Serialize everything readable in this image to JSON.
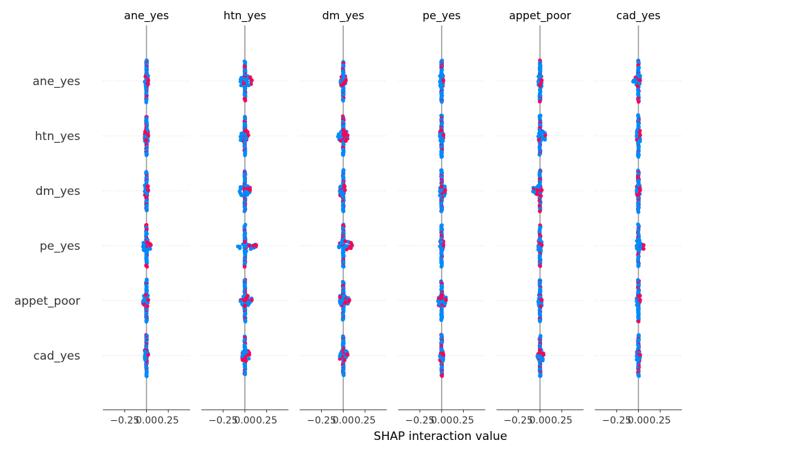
{
  "chart_data": {
    "type": "scatter",
    "title": "",
    "xlabel": "SHAP interaction value",
    "ylabel": "",
    "features": [
      "ane_yes",
      "htn_yes",
      "dm_yes",
      "pe_yes",
      "appet_poor",
      "cad_yes"
    ],
    "xlim": [
      -0.5,
      0.5
    ],
    "xticks": [
      -0.25,
      0.0,
      0.25
    ],
    "xtick_labels": [
      "−0.25",
      "0.00",
      "0.25"
    ],
    "grid": false,
    "colors": {
      "high_feature_value": "#ff0052",
      "low_feature_value": "#008bfb",
      "center_line": "#999999"
    },
    "series": [
      {
        "column": "ane_yes",
        "rows": [
          {
            "row": "ane_yes",
            "min": -0.02,
            "max": 0.02,
            "spread_top": 0.38,
            "spread_bottom": 0.38
          },
          {
            "row": "htn_yes",
            "min": -0.02,
            "max": 0.02,
            "spread_top": 0.35,
            "spread_bottom": 0.35
          },
          {
            "row": "dm_yes",
            "min": -0.02,
            "max": 0.02,
            "spread_top": 0.35,
            "spread_bottom": 0.35
          },
          {
            "row": "pe_yes",
            "min": -0.04,
            "max": 0.05,
            "spread_top": 0.38,
            "spread_bottom": 0.38
          },
          {
            "row": "appet_poor",
            "min": -0.04,
            "max": 0.02,
            "spread_top": 0.38,
            "spread_bottom": 0.38
          },
          {
            "row": "cad_yes",
            "min": -0.02,
            "max": 0.02,
            "spread_top": 0.38,
            "spread_bottom": 0.38
          }
        ]
      },
      {
        "column": "htn_yes",
        "rows": [
          {
            "row": "ane_yes",
            "min": -0.05,
            "max": 0.08,
            "spread_top": 0.35,
            "spread_bottom": 0.35
          },
          {
            "row": "htn_yes",
            "min": -0.05,
            "max": 0.04,
            "spread_top": 0.35,
            "spread_bottom": 0.35
          },
          {
            "row": "dm_yes",
            "min": -0.06,
            "max": 0.06,
            "spread_top": 0.35,
            "spread_bottom": 0.38
          },
          {
            "row": "pe_yes",
            "min": -0.08,
            "max": 0.13,
            "spread_top": 0.38,
            "spread_bottom": 0.38
          },
          {
            "row": "appet_poor",
            "min": -0.05,
            "max": 0.08,
            "spread_top": 0.38,
            "spread_bottom": 0.38
          },
          {
            "row": "cad_yes",
            "min": -0.03,
            "max": 0.05,
            "spread_top": 0.35,
            "spread_bottom": 0.35
          }
        ]
      },
      {
        "column": "dm_yes",
        "rows": [
          {
            "row": "ane_yes",
            "min": -0.03,
            "max": 0.03,
            "spread_top": 0.35,
            "spread_bottom": 0.35
          },
          {
            "row": "htn_yes",
            "min": -0.06,
            "max": 0.05,
            "spread_top": 0.35,
            "spread_bottom": 0.35
          },
          {
            "row": "dm_yes",
            "min": -0.04,
            "max": 0.02,
            "spread_top": 0.38,
            "spread_bottom": 0.38
          },
          {
            "row": "pe_yes",
            "min": -0.05,
            "max": 0.1,
            "spread_top": 0.38,
            "spread_bottom": 0.38
          },
          {
            "row": "appet_poor",
            "min": -0.04,
            "max": 0.07,
            "spread_top": 0.35,
            "spread_bottom": 0.35
          },
          {
            "row": "cad_yes",
            "min": -0.04,
            "max": 0.05,
            "spread_top": 0.35,
            "spread_bottom": 0.35
          }
        ]
      },
      {
        "column": "pe_yes",
        "rows": [
          {
            "row": "ane_yes",
            "min": -0.02,
            "max": 0.02,
            "spread_top": 0.38,
            "spread_bottom": 0.38
          },
          {
            "row": "htn_yes",
            "min": -0.02,
            "max": 0.02,
            "spread_top": 0.38,
            "spread_bottom": 0.38
          },
          {
            "row": "dm_yes",
            "min": -0.02,
            "max": 0.04,
            "spread_top": 0.38,
            "spread_bottom": 0.38
          },
          {
            "row": "pe_yes",
            "min": -0.02,
            "max": 0.02,
            "spread_top": 0.38,
            "spread_bottom": 0.38
          },
          {
            "row": "appet_poor",
            "min": -0.04,
            "max": 0.05,
            "spread_top": 0.35,
            "spread_bottom": 0.35
          },
          {
            "row": "cad_yes",
            "min": -0.02,
            "max": 0.02,
            "spread_top": 0.38,
            "spread_bottom": 0.38
          }
        ]
      },
      {
        "column": "appet_poor",
        "rows": [
          {
            "row": "ane_yes",
            "min": -0.02,
            "max": 0.02,
            "spread_top": 0.38,
            "spread_bottom": 0.38
          },
          {
            "row": "htn_yes",
            "min": -0.02,
            "max": 0.06,
            "spread_top": 0.38,
            "spread_bottom": 0.35
          },
          {
            "row": "dm_yes",
            "min": -0.08,
            "max": 0.02,
            "spread_top": 0.38,
            "spread_bottom": 0.38
          },
          {
            "row": "pe_yes",
            "min": -0.02,
            "max": 0.02,
            "spread_top": 0.38,
            "spread_bottom": 0.38
          },
          {
            "row": "appet_poor",
            "min": -0.02,
            "max": 0.02,
            "spread_top": 0.38,
            "spread_bottom": 0.38
          },
          {
            "row": "cad_yes",
            "min": -0.03,
            "max": 0.04,
            "spread_top": 0.35,
            "spread_bottom": 0.38
          }
        ]
      },
      {
        "column": "cad_yes",
        "rows": [
          {
            "row": "ane_yes",
            "min": -0.06,
            "max": 0.02,
            "spread_top": 0.38,
            "spread_bottom": 0.38
          },
          {
            "row": "htn_yes",
            "min": -0.02,
            "max": 0.02,
            "spread_top": 0.38,
            "spread_bottom": 0.38
          },
          {
            "row": "dm_yes",
            "min": -0.02,
            "max": 0.02,
            "spread_top": 0.38,
            "spread_bottom": 0.38
          },
          {
            "row": "pe_yes",
            "min": -0.02,
            "max": 0.06,
            "spread_top": 0.38,
            "spread_bottom": 0.38
          },
          {
            "row": "appet_poor",
            "min": -0.02,
            "max": 0.02,
            "spread_top": 0.38,
            "spread_bottom": 0.38
          },
          {
            "row": "cad_yes",
            "min": -0.02,
            "max": 0.02,
            "spread_top": 0.38,
            "spread_bottom": 0.38
          }
        ]
      }
    ]
  }
}
